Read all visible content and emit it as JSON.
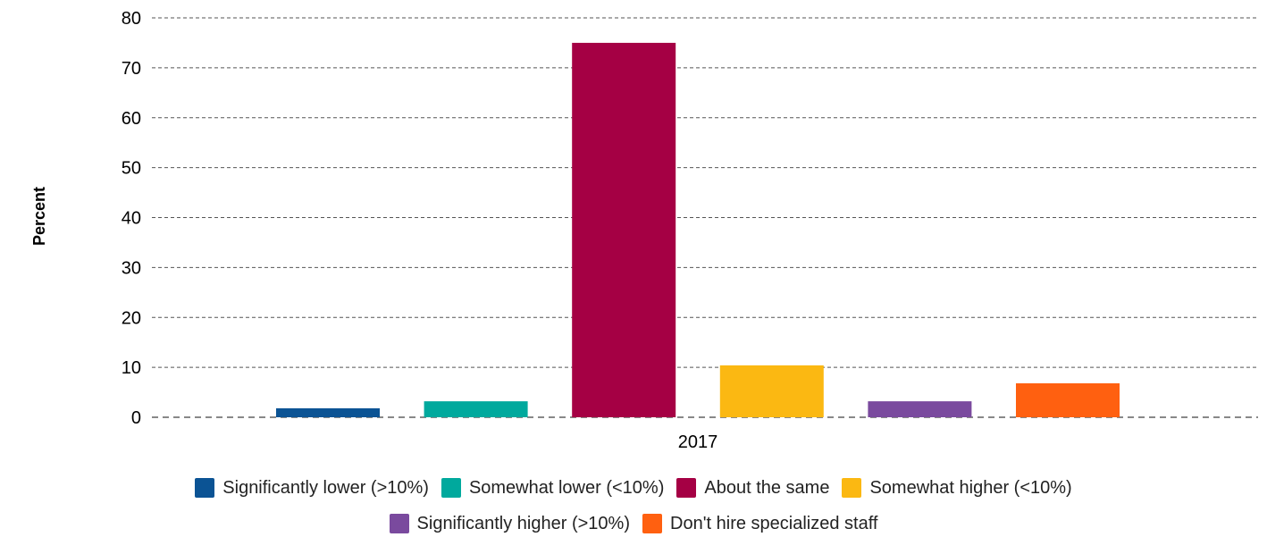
{
  "chart_data": {
    "type": "bar",
    "categories": [
      "2017"
    ],
    "series": [
      {
        "name": "Significantly lower (>10%)",
        "values": [
          1.8
        ],
        "color": "#0b5394"
      },
      {
        "name": "Somewhat lower (<10%)",
        "values": [
          3.2
        ],
        "color": "#00a99d"
      },
      {
        "name": "About the same",
        "values": [
          75
        ],
        "color": "#a50044"
      },
      {
        "name": "Somewhat higher (<10%)",
        "values": [
          10.4
        ],
        "color": "#fbb812"
      },
      {
        "name": "Significantly higher (>10%)",
        "values": [
          3.2
        ],
        "color": "#7a4a9e"
      },
      {
        "name": "Don't hire specialized staff",
        "values": [
          6.8
        ],
        "color": "#ff6010"
      }
    ],
    "ylabel": "Percent",
    "xlabel": "",
    "title": "",
    "ylim": [
      0,
      80
    ],
    "yticks": [
      0,
      10,
      20,
      30,
      40,
      50,
      60,
      70,
      80
    ],
    "grid": true,
    "legend_position": "bottom"
  }
}
